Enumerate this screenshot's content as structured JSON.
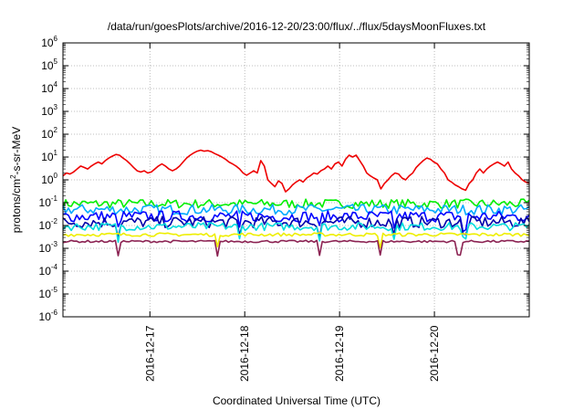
{
  "chart_data": {
    "type": "line",
    "title": "/data/run/goesPlots/archive/2016-12-20/23:00/flux/../flux/5daysMoonFluxes.txt",
    "xlabel": "Coordinated Universal Time (UTC)",
    "ylabel": {
      "base": "protons/cm",
      "sup": "2",
      "rest": "-s-sr-MeV"
    },
    "y_scale": "log",
    "ylim": [
      1e-06,
      1000000.0
    ],
    "y_ticks": [
      {
        "base": "10",
        "exp": "-6"
      },
      {
        "base": "10",
        "exp": "-5"
      },
      {
        "base": "10",
        "exp": "-4"
      },
      {
        "base": "10",
        "exp": "-3"
      },
      {
        "base": "10",
        "exp": "-2"
      },
      {
        "base": "10",
        "exp": "-1"
      },
      {
        "base": "10",
        "exp": "0"
      },
      {
        "base": "10",
        "exp": "1"
      },
      {
        "base": "10",
        "exp": "2"
      },
      {
        "base": "10",
        "exp": "3"
      },
      {
        "base": "10",
        "exp": "4"
      },
      {
        "base": "10",
        "exp": "5"
      },
      {
        "base": "10",
        "exp": "6"
      }
    ],
    "x_range_days": [
      "2016-12-16 02:00",
      "2016-12-21 00:00"
    ],
    "x_ticks": [
      "2016-12-17",
      "2016-12-18",
      "2016-12-19",
      "2016-12-20"
    ],
    "grid": true,
    "series": [
      {
        "color": "#ee0000",
        "values": [
          1.5,
          2,
          1.8,
          2.2,
          3,
          4,
          3.5,
          3,
          4,
          5,
          6,
          5,
          7,
          9,
          11,
          13,
          12,
          9,
          7,
          5,
          3.5,
          2.5,
          2.2,
          2.5,
          2,
          2.2,
          3,
          4,
          5,
          4,
          3,
          2.5,
          3,
          4,
          6,
          9,
          12,
          15,
          18,
          20,
          18,
          19,
          17,
          14,
          12,
          10,
          8,
          6,
          5,
          4,
          3,
          2,
          1.6,
          2,
          2.5,
          2,
          7,
          4,
          1,
          0.7,
          0.5,
          0.9,
          0.7,
          0.3,
          0.4,
          0.6,
          0.8,
          1,
          0.8,
          1.2,
          1.5,
          2,
          1.8,
          2.5,
          3,
          4,
          3,
          5,
          6,
          4,
          8,
          12,
          10,
          12,
          7,
          4,
          2,
          1.5,
          1.2,
          1,
          0.4,
          0.7,
          1,
          1.5,
          2,
          1.8,
          1.2,
          1,
          1.5,
          2,
          3.5,
          5,
          7,
          9,
          8,
          6,
          5,
          3,
          2,
          1,
          0.8,
          0.6,
          0.5,
          0.4,
          0.35,
          0.7,
          1,
          2,
          3,
          2,
          3,
          4,
          5,
          6,
          5,
          4,
          6,
          3,
          2,
          1.5,
          1,
          0.8,
          0.7
        ]
      },
      {
        "color": "#00ee00",
        "base": 0.09,
        "spread": 0.4,
        "dips": []
      },
      {
        "color": "#00aaff",
        "base": 0.05,
        "spread": 0.45,
        "dips": []
      },
      {
        "color": "#0000ff",
        "base": 0.025,
        "spread": 0.5,
        "dips": [
          0.12,
          0.38,
          0.55,
          0.71,
          0.86
        ]
      },
      {
        "color": "#0000aa",
        "base": 0.014,
        "spread": 0.5,
        "dips": [
          0.12,
          0.38,
          0.55,
          0.71,
          0.86
        ]
      },
      {
        "color": "#00dddd",
        "base": 0.009,
        "spread": 0.35,
        "dips": [
          0.12,
          0.38,
          0.55,
          0.71,
          0.86
        ]
      },
      {
        "color": "#eeee00",
        "base": 0.004,
        "spread": 0.15,
        "dips": [
          0.33,
          0.68
        ]
      },
      {
        "color": "#8b2252",
        "base": 0.002,
        "spread": 0.1,
        "dips": [
          0.12,
          0.33,
          0.55,
          0.68,
          0.85
        ]
      }
    ]
  }
}
